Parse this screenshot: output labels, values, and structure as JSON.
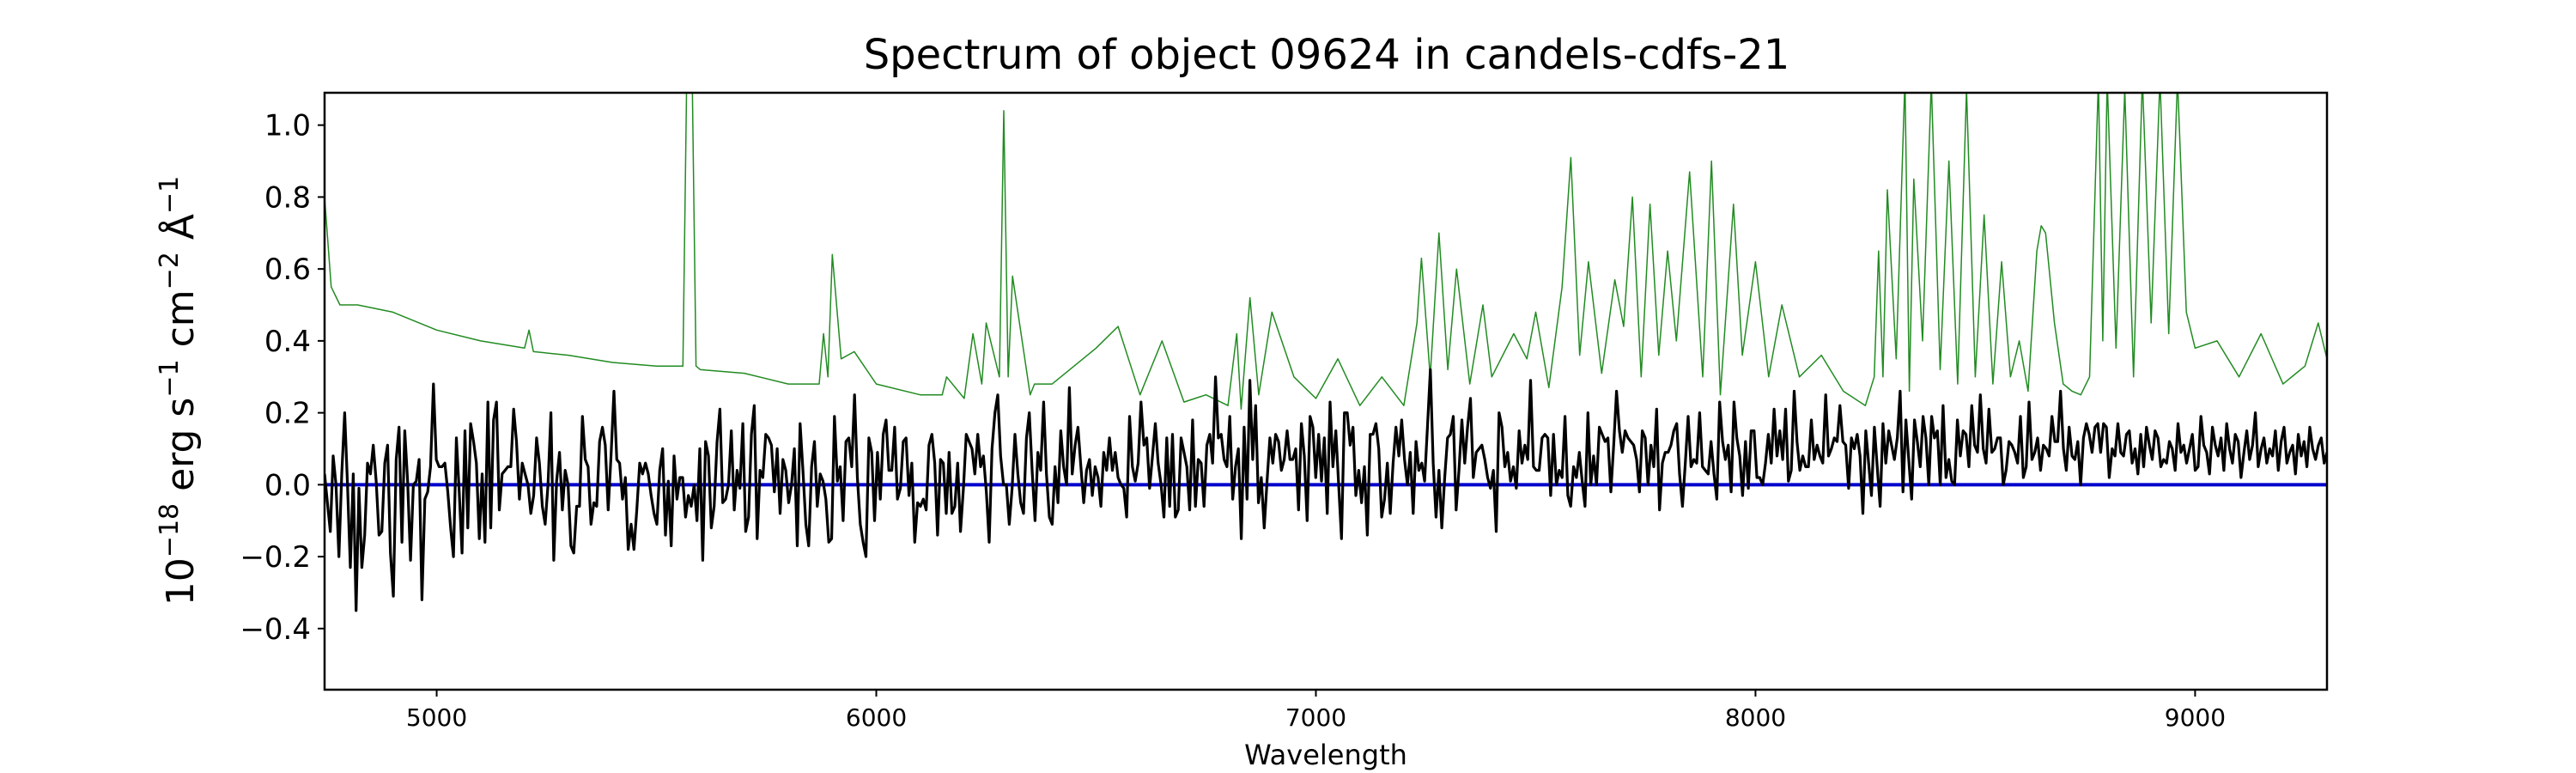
{
  "chart_data": {
    "type": "line",
    "title": "Spectrum of object 09624 in candels-cdfs-21",
    "xlabel": "Wavelength",
    "ylabel_parts": {
      "base": "10",
      "exp": "−18",
      "unit1": " erg s",
      "exp1": "−1",
      "unit2": " cm",
      "exp2": "−2",
      "unit3": " Å",
      "exp3": "−1"
    },
    "xlim": [
      4745,
      9300
    ],
    "ylim": [
      -0.57,
      1.09
    ],
    "x_ticks": [
      5000,
      6000,
      7000,
      8000,
      9000
    ],
    "x_tick_labels": [
      "5000",
      "6000",
      "7000",
      "8000",
      "9000"
    ],
    "y_ticks": [
      -0.4,
      -0.2,
      0.0,
      0.2,
      0.4,
      0.6,
      0.8,
      1.0
    ],
    "y_tick_labels": [
      "−0.4",
      "−0.2",
      "0.0",
      "0.2",
      "0.4",
      "0.6",
      "0.8",
      "1.0"
    ],
    "grid": false,
    "legend": "none",
    "series": [
      {
        "role": "error",
        "color": "#228b22",
        "x": [
          4745,
          4760,
          4780,
          4820,
          4900,
          5000,
          5100,
          5200,
          5210,
          5220,
          5300,
          5400,
          5500,
          5560,
          5570,
          5580,
          5590,
          5600,
          5700,
          5800,
          5870,
          5880,
          5890,
          5900,
          5920,
          5950,
          6000,
          6100,
          6150,
          6160,
          6200,
          6220,
          6240,
          6250,
          6280,
          6290,
          6300,
          6310,
          6350,
          6360,
          6400,
          6450,
          6500,
          6550,
          6600,
          6650,
          6700,
          6750,
          6800,
          6820,
          6830,
          6850,
          6870,
          6900,
          6950,
          7000,
          7050,
          7100,
          7150,
          7200,
          7230,
          7240,
          7260,
          7280,
          7300,
          7320,
          7350,
          7380,
          7400,
          7450,
          7480,
          7500,
          7530,
          7560,
          7580,
          7600,
          7620,
          7650,
          7680,
          7700,
          7720,
          7740,
          7760,
          7780,
          7800,
          7820,
          7850,
          7880,
          7900,
          7920,
          7950,
          7970,
          8000,
          8030,
          8060,
          8100,
          8150,
          8200,
          8250,
          8270,
          8280,
          8290,
          8300,
          8320,
          8340,
          8350,
          8360,
          8380,
          8400,
          8420,
          8440,
          8460,
          8480,
          8500,
          8520,
          8540,
          8560,
          8580,
          8600,
          8620,
          8640,
          8650,
          8660,
          8680,
          8700,
          8720,
          8740,
          8760,
          8780,
          8790,
          8800,
          8820,
          8840,
          8860,
          8880,
          8900,
          8920,
          8940,
          8960,
          8980,
          9000,
          9050,
          9100,
          9150,
          9200,
          9250,
          9280,
          9300
        ],
        "y": [
          0.8,
          0.55,
          0.5,
          0.5,
          0.48,
          0.43,
          0.4,
          0.38,
          0.43,
          0.37,
          0.36,
          0.34,
          0.33,
          0.33,
          1.25,
          1.25,
          0.33,
          0.32,
          0.31,
          0.28,
          0.28,
          0.42,
          0.3,
          0.64,
          0.35,
          0.37,
          0.28,
          0.25,
          0.25,
          0.3,
          0.24,
          0.42,
          0.28,
          0.45,
          0.3,
          1.04,
          0.3,
          0.58,
          0.25,
          0.28,
          0.28,
          0.33,
          0.38,
          0.44,
          0.25,
          0.4,
          0.23,
          0.25,
          0.22,
          0.42,
          0.21,
          0.52,
          0.25,
          0.48,
          0.3,
          0.24,
          0.35,
          0.22,
          0.3,
          0.22,
          0.45,
          0.63,
          0.3,
          0.7,
          0.32,
          0.6,
          0.28,
          0.5,
          0.3,
          0.42,
          0.35,
          0.48,
          0.27,
          0.55,
          0.91,
          0.36,
          0.62,
          0.31,
          0.57,
          0.44,
          0.8,
          0.3,
          0.78,
          0.36,
          0.65,
          0.4,
          0.87,
          0.3,
          0.9,
          0.25,
          0.78,
          0.36,
          0.62,
          0.3,
          0.5,
          0.3,
          0.36,
          0.26,
          0.22,
          0.3,
          0.65,
          0.3,
          0.82,
          0.35,
          1.13,
          0.26,
          0.85,
          0.4,
          1.12,
          0.32,
          0.9,
          0.28,
          1.1,
          0.3,
          0.75,
          0.28,
          0.62,
          0.3,
          0.4,
          0.26,
          0.65,
          0.72,
          0.7,
          0.45,
          0.28,
          0.26,
          0.25,
          0.3,
          1.13,
          0.4,
          1.13,
          0.38,
          1.1,
          0.3,
          1.13,
          0.45,
          1.13,
          0.42,
          1.13,
          0.48,
          0.38,
          0.4,
          0.3,
          0.42,
          0.28,
          0.33,
          0.45,
          0.35
        ]
      },
      {
        "role": "zero",
        "color": "#0000cd",
        "x": [
          4745,
          9300
        ],
        "y": [
          0.0,
          0.0
        ]
      },
      {
        "role": "flux",
        "color": "#000000",
        "x_start": 4745,
        "x_end": 9300,
        "y": [
          0.03,
          -0.05,
          -0.13,
          0.08,
          0.0,
          -0.2,
          0.03,
          0.2,
          0.0,
          -0.23,
          0.03,
          -0.35,
          -0.01,
          -0.23,
          -0.14,
          0.06,
          0.03,
          0.11,
          0.01,
          -0.14,
          -0.13,
          0.06,
          0.11,
          -0.19,
          -0.31,
          0.07,
          0.16,
          -0.16,
          0.15,
          0.01,
          -0.21,
          0.0,
          0.01,
          0.07,
          -0.32,
          -0.04,
          -0.02,
          0.05,
          0.28,
          0.07,
          0.05,
          0.05,
          0.06,
          -0.02,
          -0.12,
          -0.2,
          0.13,
          -0.02,
          -0.19,
          0.15,
          -0.12,
          0.17,
          0.12,
          0.06,
          -0.15,
          0.03,
          -0.16,
          0.23,
          -0.12,
          0.18,
          0.23,
          -0.07,
          0.03,
          0.04,
          0.05,
          0.05,
          0.21,
          0.12,
          -0.04,
          0.06,
          0.03,
          0.0,
          -0.08,
          -0.03,
          0.13,
          0.06,
          -0.06,
          -0.11,
          0.0,
          0.2,
          -0.21,
          0.01,
          0.09,
          -0.07,
          0.04,
          0.0,
          -0.17,
          -0.19,
          -0.06,
          -0.06,
          0.19,
          0.07,
          0.05,
          -0.11,
          -0.05,
          -0.06,
          0.12,
          0.16,
          0.11,
          -0.07,
          0.08,
          0.26,
          0.07,
          0.06,
          -0.04,
          0.02,
          -0.18,
          -0.11,
          -0.18,
          -0.07,
          0.06,
          0.03,
          0.06,
          0.03,
          -0.03,
          -0.08,
          -0.11,
          0.04,
          0.1,
          -0.14,
          0.01,
          -0.17,
          0.08,
          -0.04,
          0.02,
          0.02,
          -0.09,
          -0.03,
          -0.06,
          0.0,
          -0.1,
          0.1,
          -0.21,
          0.12,
          0.08,
          -0.12,
          -0.06,
          0.12,
          0.21,
          -0.05,
          -0.04,
          0.0,
          0.15,
          -0.07,
          0.04,
          -0.01,
          0.17,
          -0.13,
          -0.09,
          0.14,
          0.22,
          -0.15,
          0.04,
          0.02,
          0.14,
          0.13,
          0.11,
          -0.02,
          0.1,
          -0.08,
          0.07,
          0.04,
          -0.05,
          0.0,
          0.1,
          -0.17,
          0.17,
          0.04,
          -0.11,
          -0.17,
          0.05,
          0.12,
          -0.06,
          0.03,
          0.01,
          -0.04,
          -0.16,
          -0.15,
          0.19,
          0.01,
          0.05,
          -0.1,
          0.12,
          0.13,
          0.05,
          0.25,
          0.02,
          -0.11,
          -0.16,
          -0.2,
          0.13,
          0.09,
          -0.1,
          0.09,
          -0.04,
          0.14,
          0.18,
          0.04,
          0.04,
          0.16,
          -0.04,
          -0.01,
          0.12,
          0.13,
          -0.03,
          0.06,
          -0.16,
          -0.05,
          -0.06,
          -0.04,
          -0.07,
          0.11,
          0.14,
          0.06,
          -0.14,
          0.07,
          0.06,
          -0.08,
          0.09,
          -0.08,
          -0.06,
          0.06,
          -0.13,
          -0.01,
          0.14,
          0.12,
          0.1,
          0.03,
          0.14,
          0.05,
          0.08,
          -0.02,
          -0.16,
          0.1,
          0.2,
          0.25,
          0.08,
          0.0,
          0.0,
          -0.11,
          -0.01,
          0.14,
          0.03,
          -0.05,
          -0.08,
          0.13,
          0.2,
          0.04,
          -0.1,
          0.09,
          0.04,
          0.23,
          0.03,
          -0.09,
          -0.11,
          0.05,
          -0.05,
          0.15,
          0.05,
          0.0,
          0.27,
          0.03,
          0.11,
          0.16,
          0.05,
          -0.05,
          0.04,
          0.07,
          -0.03,
          0.05,
          0.02,
          -0.06,
          0.09,
          0.04,
          0.13,
          0.04,
          0.09,
          0.02,
          0.0,
          -0.01,
          -0.09,
          0.19,
          0.05,
          0.01,
          0.06,
          0.23,
          0.11,
          0.13,
          -0.01,
          0.08,
          0.17,
          0.06,
          0.0,
          -0.09,
          0.13,
          -0.06,
          0.14,
          -0.09,
          -0.07,
          0.13,
          0.09,
          0.05,
          -0.07,
          0.18,
          -0.06,
          0.07,
          0.06,
          -0.06,
          0.11,
          0.14,
          0.06,
          0.3,
          0.13,
          0.14,
          0.07,
          0.05,
          0.19,
          -0.04,
          0.05,
          0.1,
          -0.15,
          0.16,
          -0.04,
          0.29,
          0.07,
          0.22,
          -0.05,
          0.02,
          -0.12,
          0.01,
          0.13,
          0.06,
          0.14,
          0.12,
          0.04,
          0.07,
          0.15,
          0.07,
          0.07,
          0.1,
          -0.07,
          0.17,
          0.08,
          -0.1,
          0.19,
          0.16,
          0.02,
          0.14,
          0.01,
          0.13,
          -0.08,
          0.23,
          0.05,
          0.15,
          0.0,
          -0.15,
          0.2,
          0.2,
          0.11,
          0.16,
          -0.03,
          0.04,
          -0.05,
          0.05,
          -0.14,
          0.14,
          0.14,
          0.17,
          0.1,
          -0.09,
          -0.04,
          0.06,
          -0.08,
          0.06,
          0.16,
          0.08,
          0.18,
          0.07,
          0.0,
          0.09,
          -0.08,
          0.12,
          0.04,
          0.06,
          0.01,
          0.16,
          0.32,
          0.06,
          -0.09,
          0.04,
          -0.12,
          0.02,
          0.13,
          0.14,
          0.19,
          -0.07,
          0.04,
          0.18,
          0.06,
          0.16,
          0.24,
          0.02,
          0.09,
          0.1,
          0.11,
          0.07,
          0.02,
          -0.01,
          0.04,
          -0.13,
          0.2,
          0.16,
          0.05,
          0.09,
          0.01,
          0.05,
          -0.01,
          0.15,
          0.06,
          0.11,
          0.07,
          0.29,
          0.05,
          0.04,
          0.04,
          0.13,
          0.14,
          0.13,
          -0.03,
          0.14,
          0.0,
          0.04,
          0.02,
          0.19,
          -0.03,
          -0.06,
          0.05,
          0.02,
          0.09,
          0.01,
          -0.06,
          0.2,
          0.0,
          0.08,
          0.0,
          0.16,
          0.14,
          0.12,
          0.13,
          -0.02,
          0.11,
          0.26,
          0.15,
          0.09,
          0.15,
          0.13,
          0.12,
          0.11,
          0.07,
          -0.02,
          0.15,
          0.13,
          0.0,
          0.11,
          0.05,
          0.21,
          -0.07,
          0.06,
          0.09,
          0.09,
          0.11,
          0.15,
          0.17,
          0.03,
          -0.06,
          0.06,
          0.19,
          0.05,
          0.07,
          0.06,
          0.2,
          0.05,
          0.04,
          0.03,
          0.12,
          0.03,
          -0.04,
          0.23,
          0.12,
          0.07,
          0.11,
          -0.02,
          0.23,
          0.13,
          0.08,
          -0.03,
          0.12,
          -0.01,
          0.15,
          0.15,
          0.02,
          0.02,
          0.0,
          0.06,
          0.14,
          0.06,
          0.21,
          0.08,
          0.15,
          0.07,
          0.21,
          0.01,
          0.04,
          0.26,
          0.12,
          0.04,
          0.08,
          0.05,
          0.05,
          0.18,
          0.07,
          0.11,
          0.08,
          0.06,
          0.25,
          0.08,
          0.1,
          0.13,
          0.12,
          0.22,
          0.12,
          0.11,
          -0.01,
          0.13,
          0.1,
          0.14,
          0.08,
          -0.08,
          0.15,
          0.06,
          -0.03,
          0.16,
          0.05,
          -0.06,
          0.17,
          0.06,
          0.15,
          0.11,
          0.07,
          0.13,
          0.26,
          -0.02,
          0.18,
          0.07,
          -0.04,
          0.18,
          0.12,
          0.05,
          0.19,
          0.13,
          0.0,
          0.19,
          0.13,
          0.15,
          0.0,
          0.22,
          0.02,
          0.07,
          0.01,
          0.0,
          0.18,
          0.08,
          0.15,
          0.14,
          0.05,
          0.22,
          0.11,
          0.09,
          0.25,
          0.1,
          0.06,
          0.21,
          0.09,
          0.1,
          0.13,
          0.13,
          0.0,
          0.04,
          0.12,
          0.11,
          0.09,
          0.06,
          0.19,
          0.02,
          0.05,
          0.23,
          0.07,
          0.09,
          0.13,
          0.04,
          0.11,
          0.1,
          0.08,
          0.19,
          0.12,
          0.12,
          0.26,
          0.1,
          0.04,
          0.16,
          0.08,
          0.07,
          0.12,
          0.0,
          0.13,
          0.17,
          0.14,
          0.09,
          0.16,
          0.17,
          0.09,
          0.17,
          0.16,
          0.02,
          0.1,
          0.08,
          0.17,
          0.09,
          0.08,
          0.14,
          0.15,
          0.06,
          0.1,
          0.03,
          0.14,
          0.05,
          0.16,
          0.11,
          0.07,
          0.15,
          0.13,
          0.05,
          0.07,
          0.06,
          0.12,
          0.1,
          0.04,
          0.17,
          0.09,
          0.11,
          0.06,
          0.1,
          0.14,
          0.04,
          0.05,
          0.19,
          0.11,
          0.09,
          0.03,
          0.16,
          0.11,
          0.08,
          0.13,
          0.04,
          0.17,
          0.1,
          0.06,
          0.14,
          0.12,
          0.02,
          0.09,
          0.15,
          0.07,
          0.11,
          0.2,
          0.05,
          0.1,
          0.13,
          0.06,
          0.1,
          0.08,
          0.15,
          0.04,
          0.12,
          0.16,
          0.06,
          0.09,
          0.11,
          0.03,
          0.14,
          0.08,
          0.12,
          0.05,
          0.16,
          0.1,
          0.07,
          0.11,
          0.13,
          0.06,
          0.09
        ]
      }
    ]
  }
}
